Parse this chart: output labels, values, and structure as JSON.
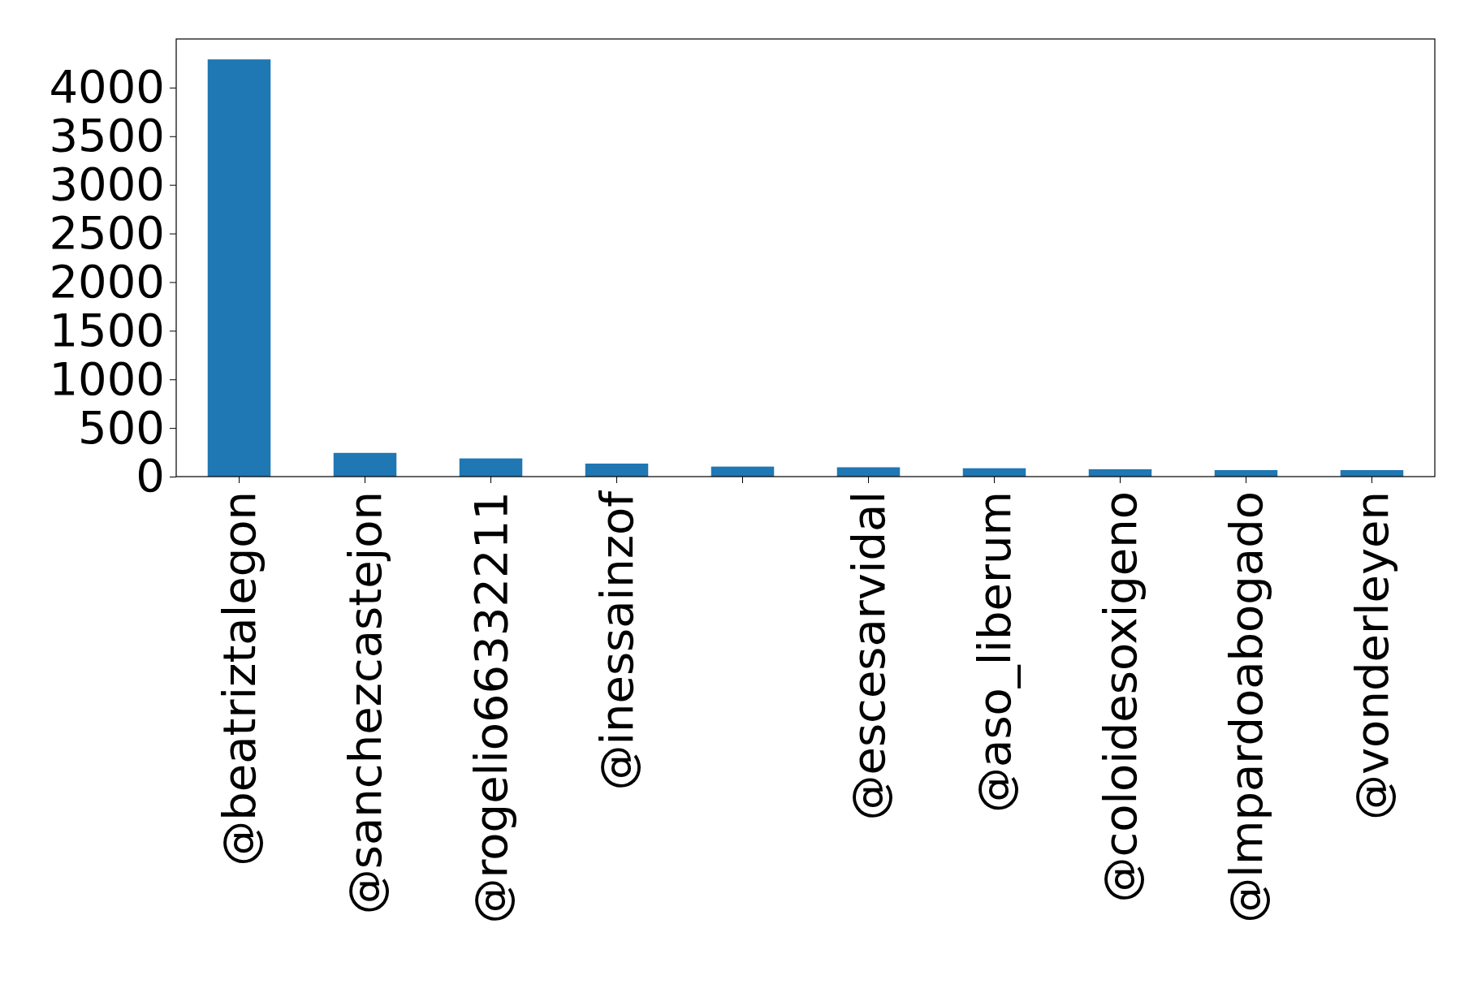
{
  "chart_data": {
    "type": "bar",
    "categories": [
      "@beatriztalegon",
      "@sanchezcastejon",
      "@rogelio66332211",
      "@inessainzof",
      null,
      "@escesarvidal",
      "@aso_liberum",
      "@coloidesoxigeno",
      "@lmpardoabogado",
      "@vonderleyen"
    ],
    "values": [
      4290,
      244,
      187,
      134,
      103,
      96,
      86,
      76,
      67,
      67
    ],
    "color": "#1f77b4",
    "ylim": [
      0,
      4500
    ],
    "yticks": [
      0,
      500,
      1000,
      1500,
      2000,
      2500,
      3000,
      3500,
      4000
    ],
    "grid": false
  }
}
